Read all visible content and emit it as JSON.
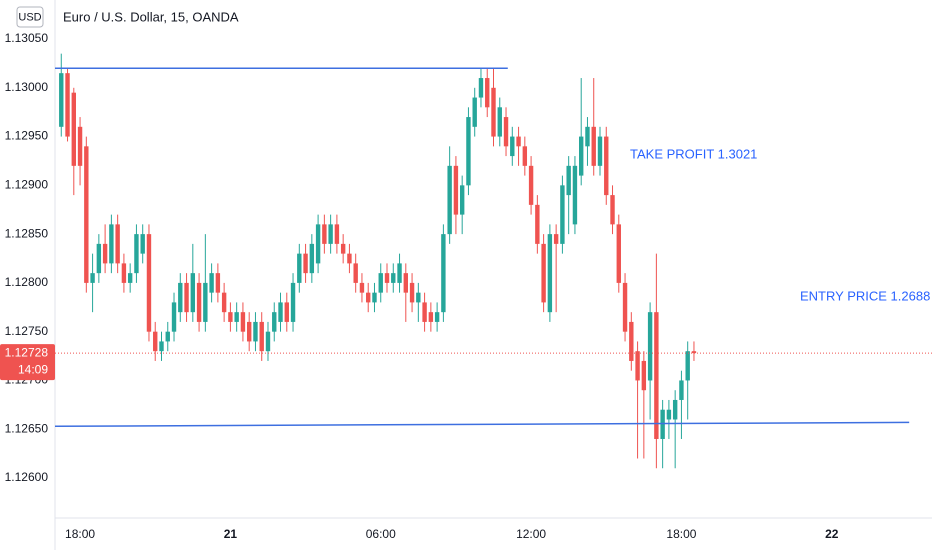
{
  "chart_data": {
    "type": "candlestick",
    "title": "Euro / U.S. Dollar, 15, OANDA",
    "currency": "USD",
    "up_color": "#26a69a",
    "down_color": "#ef5350",
    "level_color": "#3d6fe0",
    "ylim": [
      1.12559,
      1.1309
    ],
    "yticks": [
      {
        "value": 1.126,
        "label": "1.12600"
      },
      {
        "value": 1.1265,
        "label": "1.12650"
      },
      {
        "value": 1.127,
        "label": "1.12700"
      },
      {
        "value": 1.1275,
        "label": "1.12750"
      },
      {
        "value": 1.128,
        "label": "1.12800"
      },
      {
        "value": 1.1285,
        "label": "1.12850"
      },
      {
        "value": 1.129,
        "label": "1.12900"
      },
      {
        "value": 1.1295,
        "label": "1.12950"
      },
      {
        "value": 1.13,
        "label": "1.13000"
      },
      {
        "value": 1.1305,
        "label": "1.13050"
      }
    ],
    "xlim": [
      17,
      52
    ],
    "xticks": [
      {
        "value": 18,
        "label": "18:00"
      },
      {
        "value": 24,
        "label": "21"
      },
      {
        "value": 30,
        "label": "06:00"
      },
      {
        "value": 36,
        "label": "12:00"
      },
      {
        "value": 42,
        "label": "18:00"
      },
      {
        "value": 48,
        "label": "22"
      }
    ],
    "x": [
      17.25,
      17.5,
      17.75,
      18,
      18.25,
      18.5,
      18.75,
      19,
      19.25,
      19.5,
      19.75,
      20,
      20.25,
      20.5,
      20.75,
      21,
      21.25,
      21.5,
      21.75,
      22,
      22.25,
      22.5,
      22.75,
      23,
      23.25,
      23.5,
      23.75,
      24,
      24.25,
      24.5,
      24.75,
      25,
      25.25,
      25.5,
      25.75,
      26,
      26.25,
      26.5,
      26.75,
      27,
      27.25,
      27.5,
      27.75,
      28,
      28.25,
      28.5,
      28.75,
      29,
      29.25,
      29.5,
      29.75,
      30,
      30.25,
      30.5,
      30.75,
      31,
      31.25,
      31.5,
      31.75,
      32,
      32.25,
      32.5,
      32.75,
      33,
      33.25,
      33.5,
      33.75,
      34,
      34.25,
      34.5,
      34.75,
      35,
      35.25,
      35.5,
      35.75,
      36,
      36.25,
      36.5,
      36.75,
      37,
      37.25,
      37.5,
      37.75,
      38,
      38.25,
      38.5,
      38.75,
      39,
      39.25,
      39.5,
      39.75,
      40,
      40.25,
      40.5,
      40.75,
      41,
      41.25,
      41.5,
      41.75,
      42,
      42.25,
      42.5
    ],
    "ohlc": [
      [
        1.1296,
        1.13035,
        1.1295,
        1.13015
      ],
      [
        1.13015,
        1.1302,
        1.12945,
        1.1295
      ],
      [
        1.12995,
        1.13,
        1.1289,
        1.1292
      ],
      [
        1.1296,
        1.1297,
        1.129,
        1.1292
      ],
      [
        1.1294,
        1.1295,
        1.1279,
        1.128
      ],
      [
        1.128,
        1.1283,
        1.1277,
        1.1281
      ],
      [
        1.1281,
        1.1285,
        1.128,
        1.1284
      ],
      [
        1.1284,
        1.1286,
        1.1281,
        1.1282
      ],
      [
        1.1282,
        1.1287,
        1.1281,
        1.1286
      ],
      [
        1.1286,
        1.1287,
        1.1281,
        1.1282
      ],
      [
        1.1282,
        1.1283,
        1.1279,
        1.128
      ],
      [
        1.128,
        1.1282,
        1.1279,
        1.1281
      ],
      [
        1.1281,
        1.1286,
        1.128,
        1.1285
      ],
      [
        1.1283,
        1.1286,
        1.1282,
        1.1285
      ],
      [
        1.1285,
        1.1286,
        1.1274,
        1.1275
      ],
      [
        1.1275,
        1.1276,
        1.1272,
        1.1273
      ],
      [
        1.1273,
        1.1275,
        1.1272,
        1.1274
      ],
      [
        1.1274,
        1.1276,
        1.1273,
        1.1275
      ],
      [
        1.1275,
        1.1279,
        1.1274,
        1.1278
      ],
      [
        1.1277,
        1.1281,
        1.1276,
        1.128
      ],
      [
        1.128,
        1.1281,
        1.1276,
        1.1277
      ],
      [
        1.1277,
        1.1284,
        1.1276,
        1.1281
      ],
      [
        1.128,
        1.1281,
        1.1275,
        1.1276
      ],
      [
        1.1276,
        1.1285,
        1.1275,
        1.128
      ],
      [
        1.1279,
        1.1282,
        1.1278,
        1.1281
      ],
      [
        1.1281,
        1.1282,
        1.1278,
        1.1279
      ],
      [
        1.1279,
        1.128,
        1.1276,
        1.1277
      ],
      [
        1.1277,
        1.1278,
        1.1275,
        1.1276
      ],
      [
        1.1276,
        1.1278,
        1.1275,
        1.1277
      ],
      [
        1.1277,
        1.1278,
        1.1274,
        1.1275
      ],
      [
        1.1276,
        1.1277,
        1.1273,
        1.1274
      ],
      [
        1.1274,
        1.1277,
        1.1273,
        1.1276
      ],
      [
        1.1276,
        1.1277,
        1.1272,
        1.1273
      ],
      [
        1.1273,
        1.1276,
        1.1272,
        1.1275
      ],
      [
        1.1275,
        1.1278,
        1.1274,
        1.1277
      ],
      [
        1.1276,
        1.1279,
        1.1275,
        1.1278
      ],
      [
        1.1278,
        1.1279,
        1.1275,
        1.1276
      ],
      [
        1.1276,
        1.1281,
        1.1275,
        1.128
      ],
      [
        1.128,
        1.1284,
        1.1279,
        1.1283
      ],
      [
        1.1283,
        1.1284,
        1.128,
        1.1281
      ],
      [
        1.1281,
        1.1285,
        1.128,
        1.1284
      ],
      [
        1.1282,
        1.1287,
        1.1281,
        1.1286
      ],
      [
        1.1286,
        1.1287,
        1.1283,
        1.1284
      ],
      [
        1.1284,
        1.1287,
        1.1283,
        1.1286
      ],
      [
        1.1286,
        1.1287,
        1.1283,
        1.1284
      ],
      [
        1.1284,
        1.1285,
        1.1282,
        1.1283
      ],
      [
        1.1283,
        1.1284,
        1.1281,
        1.1282
      ],
      [
        1.1282,
        1.1283,
        1.1279,
        1.128
      ],
      [
        1.128,
        1.1281,
        1.1278,
        1.1279
      ],
      [
        1.1279,
        1.128,
        1.1277,
        1.1278
      ],
      [
        1.1278,
        1.128,
        1.1277,
        1.1279
      ],
      [
        1.1279,
        1.1282,
        1.1278,
        1.1281
      ],
      [
        1.1281,
        1.1282,
        1.1279,
        1.128
      ],
      [
        1.128,
        1.1282,
        1.1279,
        1.1281
      ],
      [
        1.128,
        1.1283,
        1.1279,
        1.1282
      ],
      [
        1.1281,
        1.1282,
        1.1276,
        1.1279
      ],
      [
        1.128,
        1.1281,
        1.1277,
        1.1278
      ],
      [
        1.1278,
        1.128,
        1.1276,
        1.1279
      ],
      [
        1.1278,
        1.1279,
        1.1275,
        1.1276
      ],
      [
        1.1277,
        1.1278,
        1.1275,
        1.1276
      ],
      [
        1.1276,
        1.1278,
        1.1275,
        1.1277
      ],
      [
        1.1277,
        1.1286,
        1.1276,
        1.1285
      ],
      [
        1.1285,
        1.1294,
        1.1284,
        1.1292
      ],
      [
        1.1292,
        1.1293,
        1.1285,
        1.1287
      ],
      [
        1.1287,
        1.1291,
        1.1285,
        1.129
      ],
      [
        1.129,
        1.1298,
        1.1289,
        1.1297
      ],
      [
        1.1296,
        1.13,
        1.1295,
        1.1299
      ],
      [
        1.1299,
        1.1302,
        1.1298,
        1.1301
      ],
      [
        1.1301,
        1.1302,
        1.1297,
        1.1298
      ],
      [
        1.13,
        1.1302,
        1.1294,
        1.1295
      ],
      [
        1.1295,
        1.1299,
        1.1294,
        1.1298
      ],
      [
        1.1297,
        1.1298,
        1.1293,
        1.1294
      ],
      [
        1.1293,
        1.1296,
        1.1292,
        1.1295
      ],
      [
        1.1295,
        1.1296,
        1.1292,
        1.1294
      ],
      [
        1.1294,
        1.1295,
        1.1291,
        1.1292
      ],
      [
        1.1292,
        1.1293,
        1.1287,
        1.1288
      ],
      [
        1.1288,
        1.1289,
        1.1283,
        1.1284
      ],
      [
        1.1284,
        1.1285,
        1.1277,
        1.1278
      ],
      [
        1.1277,
        1.1286,
        1.1276,
        1.1285
      ],
      [
        1.1285,
        1.1286,
        1.1277,
        1.1284
      ],
      [
        1.1284,
        1.1291,
        1.1283,
        1.129
      ],
      [
        1.1289,
        1.1293,
        1.1285,
        1.1292
      ],
      [
        1.1286,
        1.1293,
        1.1285,
        1.1292
      ],
      [
        1.1291,
        1.1301,
        1.129,
        1.1295
      ],
      [
        1.1294,
        1.1297,
        1.1292,
        1.1296
      ],
      [
        1.1296,
        1.1301,
        1.1291,
        1.1292
      ],
      [
        1.1292,
        1.1296,
        1.1291,
        1.1295
      ],
      [
        1.1295,
        1.1296,
        1.1288,
        1.1289
      ],
      [
        1.1289,
        1.129,
        1.1285,
        1.1286
      ],
      [
        1.1286,
        1.1287,
        1.1279,
        1.128
      ],
      [
        1.128,
        1.1281,
        1.1274,
        1.1275
      ],
      [
        1.1276,
        1.1277,
        1.1271,
        1.1272
      ],
      [
        1.1273,
        1.1274,
        1.1262,
        1.127
      ],
      [
        1.1272,
        1.1273,
        1.1262,
        1.1269
      ],
      [
        1.127,
        1.1278,
        1.1266,
        1.1277
      ],
      [
        1.1277,
        1.1283,
        1.1261,
        1.1264
      ],
      [
        1.1264,
        1.1268,
        1.1261,
        1.1267
      ],
      [
        1.1266,
        1.1268,
        1.1264,
        1.1267
      ],
      [
        1.1266,
        1.1269,
        1.1261,
        1.1268
      ],
      [
        1.1268,
        1.1271,
        1.1264,
        1.127
      ],
      [
        1.127,
        1.1274,
        1.1266,
        1.1273
      ],
      [
        1.1273,
        1.1274,
        1.1272,
        1.12728
      ]
    ],
    "levels": [
      {
        "x": [
          17,
          35.07
        ],
        "y": [
          1.1302,
          1.1302
        ]
      },
      {
        "x": [
          17,
          51.09
        ],
        "y": [
          1.12653,
          1.12657
        ]
      }
    ],
    "annotations": [
      "TAKE PROFIT 1.3021",
      "ENTRY PRICE 1.2688"
    ],
    "last_price": 1.12728,
    "countdown": "14:09"
  }
}
